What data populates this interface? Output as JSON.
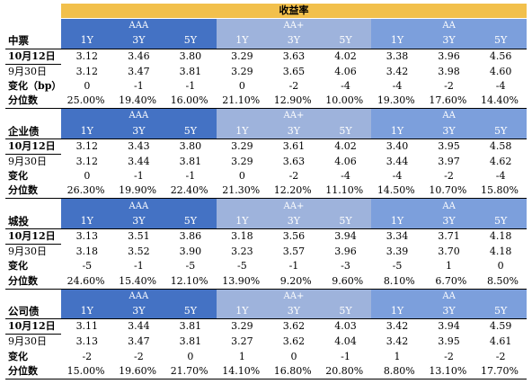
{
  "title": "收益率",
  "colors": {
    "title_bg": "#f2c04c",
    "aaa_bg": "#4472c4",
    "aa_plus_bg": "#9eb3dc",
    "aa_bg": "#7c9fdc"
  },
  "groups": [
    "AAA",
    "AA+",
    "AA"
  ],
  "tenors": [
    "1Y",
    "3Y",
    "5Y"
  ],
  "sections": [
    {
      "name": "中票",
      "rows": [
        {
          "label": "10月12日",
          "values": [
            "3.12",
            "3.46",
            "3.80",
            "3.29",
            "3.63",
            "4.02",
            "3.38",
            "3.96",
            "4.56"
          ]
        },
        {
          "label": "9月30日",
          "values": [
            "3.12",
            "3.47",
            "3.81",
            "3.29",
            "3.65",
            "4.06",
            "3.42",
            "3.98",
            "4.60"
          ]
        },
        {
          "label": "变化（bp）",
          "values": [
            "0",
            "-1",
            "-1",
            "0",
            "-2",
            "-4",
            "-4",
            "-2",
            "-4"
          ]
        },
        {
          "label": "分位数",
          "values": [
            "25.00%",
            "19.40%",
            "16.00%",
            "21.10%",
            "12.90%",
            "10.00%",
            "19.30%",
            "17.60%",
            "14.40%"
          ]
        }
      ]
    },
    {
      "name": "企业债",
      "rows": [
        {
          "label": "10月12日",
          "values": [
            "3.12",
            "3.43",
            "3.80",
            "3.29",
            "3.61",
            "4.02",
            "3.40",
            "3.95",
            "4.58"
          ]
        },
        {
          "label": "9月30日",
          "values": [
            "3.12",
            "3.44",
            "3.81",
            "3.29",
            "3.63",
            "4.06",
            "3.44",
            "3.97",
            "4.62"
          ]
        },
        {
          "label": "变化",
          "values": [
            "0",
            "-1",
            "-1",
            "0",
            "-2",
            "-4",
            "-4",
            "-2",
            "-4"
          ]
        },
        {
          "label": "分位数",
          "values": [
            "26.30%",
            "19.90%",
            "22.40%",
            "21.30%",
            "12.20%",
            "11.10%",
            "14.50%",
            "10.70%",
            "15.80%"
          ]
        }
      ]
    },
    {
      "name": "城投",
      "rows": [
        {
          "label": "10月12日",
          "values": [
            "3.13",
            "3.51",
            "3.86",
            "3.18",
            "3.56",
            "3.94",
            "3.34",
            "3.71",
            "4.18"
          ]
        },
        {
          "label": "9月30日",
          "values": [
            "3.18",
            "3.52",
            "3.90",
            "3.23",
            "3.57",
            "3.96",
            "3.39",
            "3.70",
            "4.18"
          ]
        },
        {
          "label": "变化",
          "values": [
            "-5",
            "-1",
            "-5",
            "-5",
            "-1",
            "-3",
            "-5",
            "1",
            "0"
          ]
        },
        {
          "label": "分位数",
          "values": [
            "24.60%",
            "15.40%",
            "12.10%",
            "13.90%",
            "9.20%",
            "9.60%",
            "8.10%",
            "6.70%",
            "8.50%"
          ]
        }
      ]
    },
    {
      "name": "公司债",
      "rows": [
        {
          "label": "10月12日",
          "values": [
            "3.11",
            "3.44",
            "3.81",
            "3.29",
            "3.62",
            "4.03",
            "3.42",
            "3.94",
            "4.59"
          ]
        },
        {
          "label": "9月30日",
          "values": [
            "3.13",
            "3.47",
            "3.81",
            "3.27",
            "3.62",
            "4.04",
            "3.42",
            "3.95",
            "4.61"
          ]
        },
        {
          "label": "变化",
          "values": [
            "-2",
            "-2",
            "0",
            "1",
            "0",
            "-1",
            "1",
            "-2",
            "-2"
          ]
        },
        {
          "label": "分位数",
          "values": [
            "15.00%",
            "19.60%",
            "21.70%",
            "14.10%",
            "16.80%",
            "20.80%",
            "8.80%",
            "13.10%",
            "17.70%"
          ]
        }
      ]
    }
  ]
}
